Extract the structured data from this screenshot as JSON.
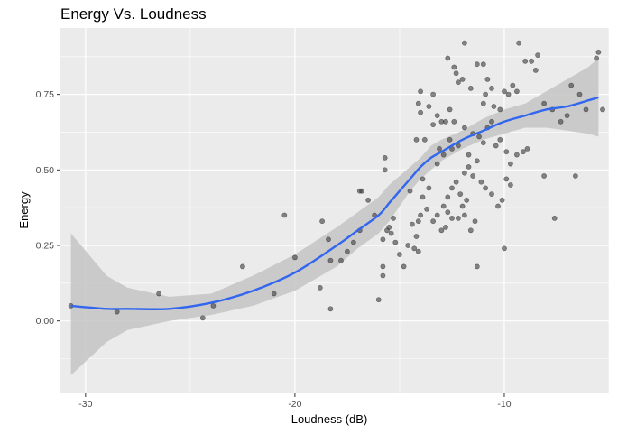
{
  "chart_data": {
    "type": "scatter",
    "title": "Energy Vs. Loudness",
    "xlabel": "Loudness (dB)",
    "ylabel": "Energy",
    "xlim": [
      -31.2,
      -5.0
    ],
    "ylim": [
      -0.24,
      0.97
    ],
    "x_ticks": [
      -30,
      -20,
      -10
    ],
    "x_tick_labels": [
      "-30",
      "-20",
      "-10"
    ],
    "y_ticks": [
      0.0,
      0.25,
      0.5,
      0.75
    ],
    "y_tick_labels": [
      "0.00",
      "0.25",
      "0.50",
      "0.75"
    ],
    "grid": true,
    "colors": {
      "panel": "#ebebeb",
      "grid": "#ffffff",
      "points": "#3a3a3a",
      "smooth": "#3366ee",
      "band": "#c4c4c4"
    },
    "points": [
      [
        -30.7,
        0.05
      ],
      [
        -28.5,
        0.03
      ],
      [
        -26.5,
        0.09
      ],
      [
        -24.4,
        0.01
      ],
      [
        -23.9,
        0.05
      ],
      [
        -22.5,
        0.18
      ],
      [
        -21.0,
        0.09
      ],
      [
        -20.5,
        0.35
      ],
      [
        -20.0,
        0.21
      ],
      [
        -18.8,
        0.11
      ],
      [
        -18.7,
        0.33
      ],
      [
        -18.4,
        0.27
      ],
      [
        -18.3,
        0.2
      ],
      [
        -18.3,
        0.04
      ],
      [
        -17.8,
        0.2
      ],
      [
        -17.5,
        0.23
      ],
      [
        -17.2,
        0.26
      ],
      [
        -16.9,
        0.43
      ],
      [
        -16.8,
        0.43
      ],
      [
        -16.5,
        0.4
      ],
      [
        -16.9,
        0.3
      ],
      [
        -16.2,
        0.35
      ],
      [
        -16.0,
        0.07
      ],
      [
        -15.8,
        0.18
      ],
      [
        -15.8,
        0.15
      ],
      [
        -15.8,
        0.27
      ],
      [
        -15.6,
        0.3
      ],
      [
        -15.4,
        0.29
      ],
      [
        -15.7,
        0.5
      ],
      [
        -15.7,
        0.54
      ],
      [
        -15.5,
        0.31
      ],
      [
        -15.3,
        0.34
      ],
      [
        -15.2,
        0.26
      ],
      [
        -15.0,
        0.22
      ],
      [
        -14.8,
        0.18
      ],
      [
        -14.6,
        0.25
      ],
      [
        -14.3,
        0.24
      ],
      [
        -14.1,
        0.23
      ],
      [
        -14.2,
        0.28
      ],
      [
        -14.0,
        0.35
      ],
      [
        -14.1,
        0.33
      ],
      [
        -13.9,
        0.41
      ],
      [
        -13.6,
        0.44
      ],
      [
        -13.9,
        0.47
      ],
      [
        -14.5,
        0.43
      ],
      [
        -14.2,
        0.6
      ],
      [
        -14.0,
        0.69
      ],
      [
        -14.1,
        0.72
      ],
      [
        -14.0,
        0.76
      ],
      [
        -13.6,
        0.71
      ],
      [
        -13.4,
        0.75
      ],
      [
        -13.2,
        0.68
      ],
      [
        -13.0,
        0.66
      ],
      [
        -12.7,
        0.87
      ],
      [
        -12.4,
        0.84
      ],
      [
        -12.3,
        0.82
      ],
      [
        -12.2,
        0.79
      ],
      [
        -12.6,
        0.7
      ],
      [
        -12.4,
        0.66
      ],
      [
        -12.0,
        0.8
      ],
      [
        -11.9,
        0.92
      ],
      [
        -11.6,
        0.77
      ],
      [
        -11.3,
        0.85
      ],
      [
        -11.0,
        0.85
      ],
      [
        -11.0,
        0.72
      ],
      [
        -10.9,
        0.75
      ],
      [
        -10.8,
        0.8
      ],
      [
        -10.6,
        0.77
      ],
      [
        -10.5,
        0.71
      ],
      [
        -10.2,
        0.7
      ],
      [
        -10.0,
        0.76
      ],
      [
        -9.8,
        0.75
      ],
      [
        -9.6,
        0.78
      ],
      [
        -9.4,
        0.76
      ],
      [
        -9.3,
        0.92
      ],
      [
        -9.0,
        0.86
      ],
      [
        -8.7,
        0.86
      ],
      [
        -8.5,
        0.83
      ],
      [
        -8.4,
        0.88
      ],
      [
        -8.1,
        0.72
      ],
      [
        -7.7,
        0.7
      ],
      [
        -7.3,
        0.66
      ],
      [
        -7.0,
        0.68
      ],
      [
        -6.8,
        0.78
      ],
      [
        -6.4,
        0.75
      ],
      [
        -6.1,
        0.7
      ],
      [
        -5.6,
        0.87
      ],
      [
        -5.5,
        0.89
      ],
      [
        -5.3,
        0.7
      ],
      [
        -13.8,
        0.6
      ],
      [
        -13.4,
        0.65
      ],
      [
        -13.1,
        0.57
      ],
      [
        -12.8,
        0.66
      ],
      [
        -12.6,
        0.6
      ],
      [
        -12.2,
        0.58
      ],
      [
        -11.9,
        0.64
      ],
      [
        -11.7,
        0.55
      ],
      [
        -11.5,
        0.62
      ],
      [
        -11.2,
        0.61
      ],
      [
        -11.0,
        0.59
      ],
      [
        -10.8,
        0.64
      ],
      [
        -10.6,
        0.66
      ],
      [
        -10.4,
        0.58
      ],
      [
        -10.2,
        0.6
      ],
      [
        -9.9,
        0.56
      ],
      [
        -9.7,
        0.52
      ],
      [
        -9.4,
        0.55
      ],
      [
        -9.1,
        0.56
      ],
      [
        -8.9,
        0.57
      ],
      [
        -13.4,
        0.33
      ],
      [
        -13.2,
        0.35
      ],
      [
        -12.9,
        0.38
      ],
      [
        -12.7,
        0.41
      ],
      [
        -12.5,
        0.44
      ],
      [
        -12.3,
        0.46
      ],
      [
        -12.1,
        0.42
      ],
      [
        -11.9,
        0.49
      ],
      [
        -11.7,
        0.51
      ],
      [
        -11.5,
        0.48
      ],
      [
        -11.3,
        0.53
      ],
      [
        -11.1,
        0.46
      ],
      [
        -10.9,
        0.44
      ],
      [
        -10.6,
        0.42
      ],
      [
        -10.3,
        0.38
      ],
      [
        -10.1,
        0.4
      ],
      [
        -9.9,
        0.47
      ],
      [
        -9.7,
        0.45
      ],
      [
        -13.0,
        0.3
      ],
      [
        -12.7,
        0.36
      ],
      [
        -12.5,
        0.34
      ],
      [
        -12.2,
        0.34
      ],
      [
        -11.9,
        0.35
      ],
      [
        -11.6,
        0.3
      ],
      [
        -11.3,
        0.18
      ],
      [
        -10.0,
        0.24
      ],
      [
        -8.1,
        0.48
      ],
      [
        -7.6,
        0.34
      ],
      [
        -6.6,
        0.48
      ],
      [
        -14.4,
        0.32
      ],
      [
        -13.2,
        0.52
      ],
      [
        -12.9,
        0.55
      ],
      [
        -12.5,
        0.57
      ],
      [
        -11.8,
        0.4
      ],
      [
        -12.0,
        0.38
      ],
      [
        -11.4,
        0.33
      ],
      [
        -13.7,
        0.37
      ],
      [
        -12.8,
        0.31
      ]
    ],
    "smooth": {
      "x": [
        -30.7,
        -29.0,
        -28.0,
        -26.0,
        -24.0,
        -22.0,
        -20.0,
        -18.0,
        -17.0,
        -16.0,
        -15.5,
        -15.0,
        -14.5,
        -14.0,
        -13.5,
        -13.0,
        -12.0,
        -11.0,
        -10.0,
        -9.0,
        -8.0,
        -7.0,
        -6.0,
        -5.5
      ],
      "y": [
        0.05,
        0.04,
        0.04,
        0.04,
        0.06,
        0.1,
        0.16,
        0.25,
        0.3,
        0.35,
        0.39,
        0.43,
        0.47,
        0.51,
        0.54,
        0.56,
        0.6,
        0.63,
        0.66,
        0.68,
        0.7,
        0.71,
        0.73,
        0.74
      ],
      "lo": [
        -0.18,
        -0.07,
        -0.03,
        0.0,
        0.02,
        0.05,
        0.1,
        0.18,
        0.24,
        0.29,
        0.33,
        0.38,
        0.43,
        0.47,
        0.5,
        0.53,
        0.57,
        0.6,
        0.62,
        0.64,
        0.64,
        0.63,
        0.62,
        0.61
      ],
      "hi": [
        0.29,
        0.15,
        0.11,
        0.08,
        0.09,
        0.15,
        0.22,
        0.31,
        0.36,
        0.41,
        0.45,
        0.48,
        0.51,
        0.54,
        0.58,
        0.6,
        0.63,
        0.67,
        0.7,
        0.72,
        0.76,
        0.8,
        0.84,
        0.87
      ]
    }
  }
}
